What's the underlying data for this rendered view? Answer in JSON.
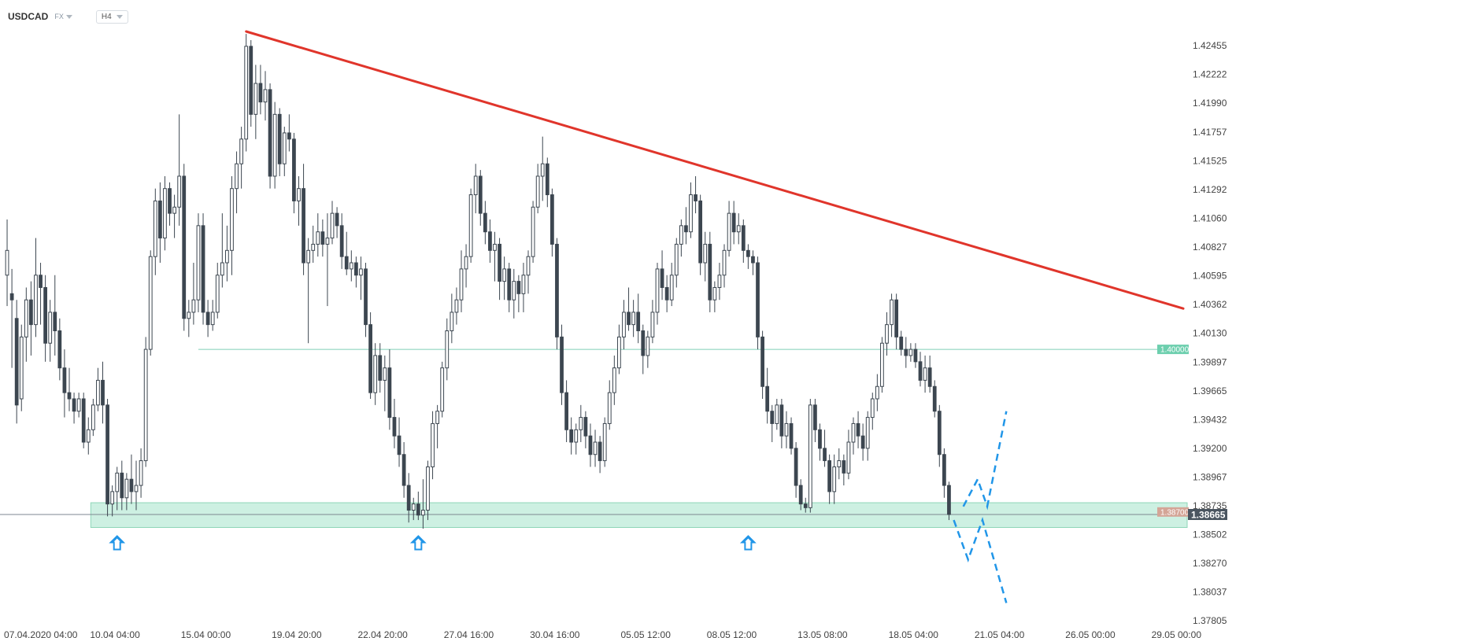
{
  "header": {
    "symbol": "USDCAD",
    "market": "FX",
    "timeframe": "H4"
  },
  "colors": {
    "bull_body": "#ffffff",
    "bull_border": "#3c4650",
    "bear_body": "#3c4650",
    "wick": "#3c4650",
    "trendline": "#e0352b",
    "support_zone": "#cdf0e2",
    "support_border": "#8fd6b8",
    "level_line": "#7fcfb6",
    "level_tag": "#6dcfae",
    "zone_tag": "#d4a597",
    "current_tag": "#4a5560",
    "projection": "#2196e8",
    "arrow": "#2196e8"
  },
  "chart_data": {
    "type": "candlestick",
    "y_axis": {
      "min": 1.378,
      "max": 1.4257,
      "ticks": [
        "1.42455",
        "1.42222",
        "1.41990",
        "1.41757",
        "1.41525",
        "1.41292",
        "1.41060",
        "1.40827",
        "1.40595",
        "1.40362",
        "1.40130",
        "1.39897",
        "1.39665",
        "1.39432",
        "1.39200",
        "1.38967",
        "1.38735",
        "1.38502",
        "1.38270",
        "1.38037",
        "1.37805"
      ]
    },
    "x_axis": {
      "ticks": [
        {
          "label": "07.04.2020  04:00",
          "index": 0
        },
        {
          "label": "10.04  04:00",
          "index": 18
        },
        {
          "label": "15.04  00:00",
          "index": 37
        },
        {
          "label": "19.04  20:00",
          "index": 56
        },
        {
          "label": "22.04  20:00",
          "index": 74
        },
        {
          "label": "27.04  16:00",
          "index": 92
        },
        {
          "label": "30.04  16:00",
          "index": 110
        },
        {
          "label": "05.05  12:00",
          "index": 129
        },
        {
          "label": "08.05  12:00",
          "index": 147
        },
        {
          "label": "13.05  08:00",
          "index": 166
        },
        {
          "label": "18.05  04:00",
          "index": 185
        },
        {
          "label": "21.05  04:00",
          "index": 203
        },
        {
          "label": "26.05  00:00",
          "index": 222
        },
        {
          "label": "29.05  00:00",
          "index": 240
        }
      ],
      "total_slots": 246
    },
    "candles": [
      [
        1.406,
        1.4105,
        1.4035,
        1.408
      ],
      [
        1.4045,
        1.4065,
        1.3985,
        1.404
      ],
      [
        1.4025,
        1.404,
        1.394,
        1.3955
      ],
      [
        1.396,
        1.402,
        1.395,
        1.401
      ],
      [
        1.401,
        1.405,
        1.399,
        1.404
      ],
      [
        1.404,
        1.4055,
        1.3995,
        1.402
      ],
      [
        1.402,
        1.409,
        1.401,
        1.406
      ],
      [
        1.406,
        1.407,
        1.402,
        1.405
      ],
      [
        1.405,
        1.406,
        1.399,
        1.4005
      ],
      [
        1.4005,
        1.404,
        1.399,
        1.403
      ],
      [
        1.403,
        1.406,
        1.3995,
        1.4015
      ],
      [
        1.4015,
        1.4025,
        1.3975,
        1.3985
      ],
      [
        1.3985,
        1.4,
        1.3945,
        1.3965
      ],
      [
        1.3965,
        1.3985,
        1.395,
        1.396
      ],
      [
        1.396,
        1.3965,
        1.394,
        1.395
      ],
      [
        1.395,
        1.3965,
        1.3945,
        1.396
      ],
      [
        1.396,
        1.3965,
        1.392,
        1.3925
      ],
      [
        1.3925,
        1.3945,
        1.3915,
        1.3935
      ],
      [
        1.3935,
        1.396,
        1.393,
        1.3955
      ],
      [
        1.3955,
        1.3985,
        1.395,
        1.3975
      ],
      [
        1.3975,
        1.399,
        1.394,
        1.3955
      ],
      [
        1.3955,
        1.396,
        1.3865,
        1.3875
      ],
      [
        1.3875,
        1.389,
        1.3865,
        1.3885
      ],
      [
        1.3885,
        1.3905,
        1.387,
        1.39
      ],
      [
        1.39,
        1.391,
        1.387,
        1.388
      ],
      [
        1.388,
        1.39,
        1.387,
        1.3895
      ],
      [
        1.3895,
        1.3915,
        1.3875,
        1.3885
      ],
      [
        1.3885,
        1.391,
        1.387,
        1.389
      ],
      [
        1.389,
        1.392,
        1.388,
        1.391
      ],
      [
        1.391,
        1.401,
        1.3905,
        1.4
      ],
      [
        1.4,
        1.408,
        1.3995,
        1.4075
      ],
      [
        1.4075,
        1.413,
        1.406,
        1.412
      ],
      [
        1.412,
        1.4135,
        1.407,
        1.409
      ],
      [
        1.409,
        1.414,
        1.408,
        1.413
      ],
      [
        1.413,
        1.4135,
        1.41,
        1.411
      ],
      [
        1.411,
        1.4125,
        1.409,
        1.4115
      ],
      [
        1.4115,
        1.419,
        1.41,
        1.414
      ],
      [
        1.414,
        1.415,
        1.4015,
        1.4025
      ],
      [
        1.4025,
        1.404,
        1.401,
        1.403
      ],
      [
        1.403,
        1.407,
        1.402,
        1.404
      ],
      [
        1.404,
        1.411,
        1.403,
        1.41
      ],
      [
        1.41,
        1.411,
        1.402,
        1.403
      ],
      [
        1.403,
        1.404,
        1.401,
        1.402
      ],
      [
        1.402,
        1.404,
        1.4015,
        1.403
      ],
      [
        1.403,
        1.407,
        1.4025,
        1.406
      ],
      [
        1.406,
        1.411,
        1.405,
        1.407
      ],
      [
        1.407,
        1.41,
        1.4055,
        1.408
      ],
      [
        1.408,
        1.414,
        1.406,
        1.413
      ],
      [
        1.413,
        1.416,
        1.411,
        1.415
      ],
      [
        1.415,
        1.418,
        1.413,
        1.417
      ],
      [
        1.417,
        1.4255,
        1.416,
        1.4245
      ],
      [
        1.4245,
        1.425,
        1.418,
        1.419
      ],
      [
        1.419,
        1.423,
        1.417,
        1.4215
      ],
      [
        1.4215,
        1.423,
        1.419,
        1.42
      ],
      [
        1.42,
        1.4225,
        1.4185,
        1.421
      ],
      [
        1.421,
        1.4215,
        1.413,
        1.414
      ],
      [
        1.414,
        1.42,
        1.413,
        1.419
      ],
      [
        1.419,
        1.4195,
        1.414,
        1.415
      ],
      [
        1.415,
        1.418,
        1.414,
        1.4175
      ],
      [
        1.4175,
        1.419,
        1.416,
        1.417
      ],
      [
        1.417,
        1.4175,
        1.411,
        1.412
      ],
      [
        1.412,
        1.414,
        1.41,
        1.413
      ],
      [
        1.413,
        1.415,
        1.406,
        1.407
      ],
      [
        1.407,
        1.409,
        1.4005,
        1.408
      ],
      [
        1.408,
        1.41,
        1.407,
        1.4085
      ],
      [
        1.4085,
        1.411,
        1.4075,
        1.4095
      ],
      [
        1.4095,
        1.4105,
        1.4075,
        1.4085
      ],
      [
        1.4085,
        1.411,
        1.4035,
        1.409
      ],
      [
        1.409,
        1.412,
        1.4085,
        1.411
      ],
      [
        1.411,
        1.4115,
        1.409,
        1.41
      ],
      [
        1.41,
        1.411,
        1.4065,
        1.4075
      ],
      [
        1.4075,
        1.4095,
        1.406,
        1.4065
      ],
      [
        1.4065,
        1.408,
        1.4055,
        1.407
      ],
      [
        1.407,
        1.4075,
        1.405,
        1.406
      ],
      [
        1.406,
        1.4075,
        1.404,
        1.4065
      ],
      [
        1.4065,
        1.407,
        1.401,
        1.402
      ],
      [
        1.402,
        1.403,
        1.396,
        1.3965
      ],
      [
        1.3965,
        1.4005,
        1.3955,
        1.3995
      ],
      [
        1.3995,
        1.4005,
        1.3965,
        1.3975
      ],
      [
        1.3975,
        1.3995,
        1.395,
        1.3985
      ],
      [
        1.3985,
        1.4,
        1.3935,
        1.3945
      ],
      [
        1.3945,
        1.396,
        1.392,
        1.393
      ],
      [
        1.393,
        1.3945,
        1.3905,
        1.3915
      ],
      [
        1.3915,
        1.3925,
        1.388,
        1.389
      ],
      [
        1.389,
        1.39,
        1.386,
        1.387
      ],
      [
        1.387,
        1.388,
        1.3862,
        1.3875
      ],
      [
        1.3875,
        1.3885,
        1.3862,
        1.3866
      ],
      [
        1.3866,
        1.3895,
        1.3855,
        1.387
      ],
      [
        1.387,
        1.391,
        1.3862,
        1.3905
      ],
      [
        1.3905,
        1.395,
        1.3895,
        1.394
      ],
      [
        1.394,
        1.3955,
        1.392,
        1.395
      ],
      [
        1.395,
        1.399,
        1.3945,
        1.3985
      ],
      [
        1.3985,
        1.4025,
        1.3975,
        1.4015
      ],
      [
        1.4015,
        1.4045,
        1.4005,
        1.403
      ],
      [
        1.403,
        1.405,
        1.402,
        1.404
      ],
      [
        1.404,
        1.408,
        1.403,
        1.4065
      ],
      [
        1.4065,
        1.4085,
        1.405,
        1.4075
      ],
      [
        1.4075,
        1.413,
        1.407,
        1.4125
      ],
      [
        1.4125,
        1.415,
        1.411,
        1.414
      ],
      [
        1.414,
        1.4145,
        1.41,
        1.411
      ],
      [
        1.411,
        1.412,
        1.4085,
        1.4095
      ],
      [
        1.4095,
        1.4105,
        1.407,
        1.408
      ],
      [
        1.408,
        1.4095,
        1.4055,
        1.4085
      ],
      [
        1.4085,
        1.409,
        1.404,
        1.4055
      ],
      [
        1.4055,
        1.4075,
        1.404,
        1.4065
      ],
      [
        1.4065,
        1.407,
        1.403,
        1.404
      ],
      [
        1.404,
        1.4065,
        1.4025,
        1.4055
      ],
      [
        1.4055,
        1.406,
        1.403,
        1.4045
      ],
      [
        1.4045,
        1.407,
        1.403,
        1.406
      ],
      [
        1.406,
        1.408,
        1.4045,
        1.4075
      ],
      [
        1.4075,
        1.412,
        1.407,
        1.4115
      ],
      [
        1.4115,
        1.415,
        1.411,
        1.414
      ],
      [
        1.414,
        1.4172,
        1.412,
        1.415
      ],
      [
        1.415,
        1.4155,
        1.4115,
        1.4125
      ],
      [
        1.4125,
        1.413,
        1.4075,
        1.4085
      ],
      [
        1.4085,
        1.409,
        1.4,
        1.401
      ],
      [
        1.401,
        1.402,
        1.3955,
        1.3965
      ],
      [
        1.3965,
        1.3975,
        1.3925,
        1.3935
      ],
      [
        1.3935,
        1.3945,
        1.3915,
        1.3925
      ],
      [
        1.3925,
        1.394,
        1.3915,
        1.3935
      ],
      [
        1.3935,
        1.3955,
        1.3925,
        1.3945
      ],
      [
        1.3945,
        1.395,
        1.392,
        1.393
      ],
      [
        1.393,
        1.394,
        1.3905,
        1.3915
      ],
      [
        1.3915,
        1.3935,
        1.3905,
        1.3925
      ],
      [
        1.3925,
        1.393,
        1.39,
        1.391
      ],
      [
        1.391,
        1.3945,
        1.3905,
        1.394
      ],
      [
        1.394,
        1.3975,
        1.3935,
        1.3965
      ],
      [
        1.3965,
        1.3995,
        1.3955,
        1.3985
      ],
      [
        1.3985,
        1.402,
        1.398,
        1.401
      ],
      [
        1.401,
        1.404,
        1.4,
        1.403
      ],
      [
        1.403,
        1.405,
        1.4015,
        1.402
      ],
      [
        1.402,
        1.404,
        1.401,
        1.403
      ],
      [
        1.403,
        1.4045,
        1.4005,
        1.4015
      ],
      [
        1.4015,
        1.402,
        1.398,
        1.3995
      ],
      [
        1.3995,
        1.4015,
        1.3985,
        1.401
      ],
      [
        1.401,
        1.404,
        1.4005,
        1.403
      ],
      [
        1.403,
        1.407,
        1.402,
        1.4065
      ],
      [
        1.4065,
        1.408,
        1.404,
        1.405
      ],
      [
        1.405,
        1.406,
        1.403,
        1.404
      ],
      [
        1.404,
        1.407,
        1.4035,
        1.406
      ],
      [
        1.406,
        1.409,
        1.405,
        1.4085
      ],
      [
        1.4085,
        1.4105,
        1.4075,
        1.41
      ],
      [
        1.41,
        1.4115,
        1.4085,
        1.4095
      ],
      [
        1.4095,
        1.4135,
        1.409,
        1.4125
      ],
      [
        1.4125,
        1.414,
        1.411,
        1.412
      ],
      [
        1.412,
        1.4125,
        1.406,
        1.407
      ],
      [
        1.407,
        1.4095,
        1.4055,
        1.4085
      ],
      [
        1.4085,
        1.4095,
        1.403,
        1.404
      ],
      [
        1.404,
        1.4055,
        1.403,
        1.405
      ],
      [
        1.405,
        1.407,
        1.404,
        1.406
      ],
      [
        1.406,
        1.4085,
        1.405,
        1.408
      ],
      [
        1.408,
        1.412,
        1.4075,
        1.411
      ],
      [
        1.411,
        1.412,
        1.4085,
        1.4095
      ],
      [
        1.4095,
        1.411,
        1.4085,
        1.41
      ],
      [
        1.41,
        1.4105,
        1.407,
        1.408
      ],
      [
        1.408,
        1.4085,
        1.4065,
        1.4075
      ],
      [
        1.4075,
        1.408,
        1.406,
        1.407
      ],
      [
        1.407,
        1.4075,
        1.4,
        1.401
      ],
      [
        1.401,
        1.4015,
        1.396,
        1.397
      ],
      [
        1.397,
        1.3985,
        1.394,
        1.395
      ],
      [
        1.395,
        1.3955,
        1.3925,
        1.394
      ],
      [
        1.394,
        1.396,
        1.3935,
        1.3955
      ],
      [
        1.3955,
        1.396,
        1.392,
        1.393
      ],
      [
        1.393,
        1.395,
        1.392,
        1.394
      ],
      [
        1.394,
        1.3945,
        1.3915,
        1.392
      ],
      [
        1.392,
        1.3925,
        1.388,
        1.389
      ],
      [
        1.389,
        1.3895,
        1.387,
        1.3875
      ],
      [
        1.3875,
        1.388,
        1.3868,
        1.3872
      ],
      [
        1.3872,
        1.396,
        1.3868,
        1.3955
      ],
      [
        1.3955,
        1.396,
        1.3925,
        1.3935
      ],
      [
        1.3935,
        1.394,
        1.391,
        1.392
      ],
      [
        1.392,
        1.3935,
        1.3905,
        1.391
      ],
      [
        1.391,
        1.3915,
        1.3875,
        1.3885
      ],
      [
        1.3885,
        1.3915,
        1.3875,
        1.3905
      ],
      [
        1.3905,
        1.392,
        1.3895,
        1.391
      ],
      [
        1.391,
        1.3915,
        1.389,
        1.39
      ],
      [
        1.39,
        1.3935,
        1.3895,
        1.3925
      ],
      [
        1.3925,
        1.3945,
        1.3915,
        1.394
      ],
      [
        1.394,
        1.395,
        1.392,
        1.393
      ],
      [
        1.393,
        1.394,
        1.391,
        1.392
      ],
      [
        1.392,
        1.395,
        1.391,
        1.3945
      ],
      [
        1.3945,
        1.3965,
        1.3935,
        1.396
      ],
      [
        1.396,
        1.398,
        1.395,
        1.397
      ],
      [
        1.397,
        1.401,
        1.3965,
        1.4005
      ],
      [
        1.4005,
        1.403,
        1.3995,
        1.402
      ],
      [
        1.402,
        1.4045,
        1.401,
        1.404
      ],
      [
        1.404,
        1.4045,
        1.4,
        1.401
      ],
      [
        1.401,
        1.4015,
        1.3995,
        1.4
      ],
      [
        1.4,
        1.401,
        1.3985,
        1.3995
      ],
      [
        1.3995,
        1.4005,
        1.399,
        1.4
      ],
      [
        1.4,
        1.4005,
        1.3985,
        1.399
      ],
      [
        1.399,
        1.3998,
        1.397,
        1.3975
      ],
      [
        1.3975,
        1.3995,
        1.3965,
        1.3985
      ],
      [
        1.3985,
        1.3995,
        1.3965,
        1.397
      ],
      [
        1.397,
        1.3975,
        1.3945,
        1.395
      ],
      [
        1.395,
        1.3955,
        1.3905,
        1.3915
      ],
      [
        1.3915,
        1.392,
        1.388,
        1.389
      ],
      [
        1.389,
        1.3893,
        1.3862,
        1.38665
      ]
    ]
  },
  "annotations": {
    "trendline": {
      "start": {
        "index": 50,
        "price": 1.4257
      },
      "end": {
        "index": 246,
        "price": 1.4033
      }
    },
    "level_1": {
      "price": 1.4,
      "label": "1.40000",
      "from_index": 40
    },
    "support_zone": {
      "low": 1.3856,
      "high": 1.3876,
      "from_index": 18,
      "label": "1.38700"
    },
    "current_price": {
      "price": 1.38665,
      "label": "1.38665"
    },
    "arrows": [
      {
        "index": 23
      },
      {
        "index": 86
      },
      {
        "index": 155
      }
    ],
    "projection_up": [
      [
        1.3873,
        0
      ],
      [
        1.3895,
        3
      ],
      [
        1.3873,
        5
      ],
      [
        1.395,
        9
      ]
    ],
    "projection_down": [
      [
        1.3862,
        -2
      ],
      [
        1.383,
        1
      ],
      [
        1.3862,
        4
      ],
      [
        1.3795,
        9
      ]
    ]
  }
}
